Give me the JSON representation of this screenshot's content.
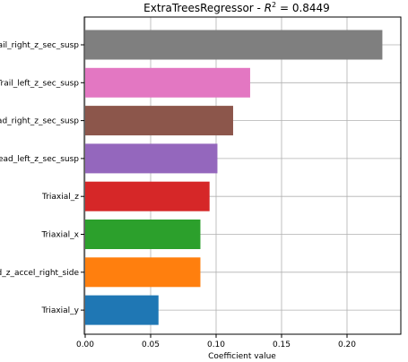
{
  "chart_data": {
    "type": "bar",
    "orientation": "horizontal",
    "title_prefix": "ExtraTreesRegressor - ",
    "title_r": "R",
    "title_sup": "2",
    "title_suffix": " = 0.8449",
    "xlabel": "Coefficient value",
    "ylabel": "",
    "xlim": [
      0,
      0.235
    ],
    "xticks": [
      "0.00",
      "0.05",
      "0.10",
      "0.15",
      "0.20"
    ],
    "xtick_values": [
      0,
      0.05,
      0.1,
      0.15,
      0.2
    ],
    "grid": true,
    "categories": [
      "Trail_right_z_sec_susp",
      "Trail_left_z_sec_susp",
      "Lead_right_z_sec_susp",
      "Lead_left_z_sec_susp",
      "Triaxial_z",
      "Triaxial_x",
      "Lead_z_accel_right_side",
      "Triaxial_y"
    ],
    "values": [
      0.227,
      0.126,
      0.113,
      0.101,
      0.095,
      0.088,
      0.088,
      0.056
    ],
    "colors": [
      "#7f7f7f",
      "#e377c2",
      "#8c564b",
      "#9467bd",
      "#d62728",
      "#2ca02c",
      "#ff7f0e",
      "#1f77b4"
    ]
  }
}
